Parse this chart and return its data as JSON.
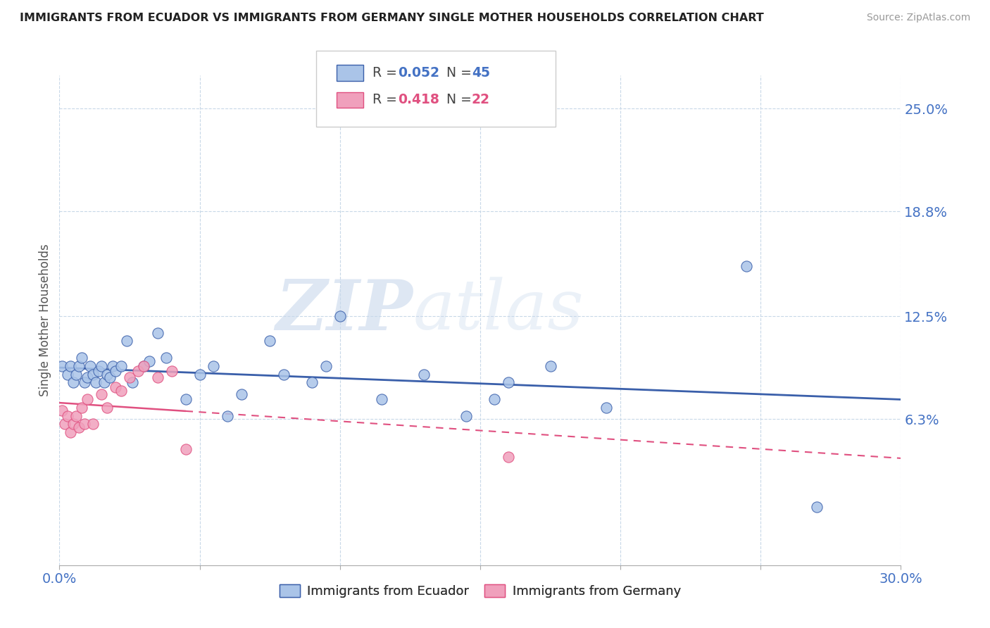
{
  "title": "IMMIGRANTS FROM ECUADOR VS IMMIGRANTS FROM GERMANY SINGLE MOTHER HOUSEHOLDS CORRELATION CHART",
  "source": "Source: ZipAtlas.com",
  "ylabel": "Single Mother Households",
  "xlim": [
    0.0,
    0.3
  ],
  "ylim": [
    -0.025,
    0.27
  ],
  "xticks": [
    0.0,
    0.05,
    0.1,
    0.15,
    0.2,
    0.25,
    0.3
  ],
  "ytick_positions": [
    0.063,
    0.125,
    0.188,
    0.25
  ],
  "ytick_labels": [
    "6.3%",
    "12.5%",
    "18.8%",
    "25.0%"
  ],
  "color_ecuador": "#aac4e8",
  "color_germany": "#f0a0bc",
  "color_ecuador_line": "#3a5faa",
  "color_germany_line": "#e05080",
  "watermark_zip": "ZIP",
  "watermark_atlas": "atlas",
  "ecuador_x": [
    0.001,
    0.003,
    0.004,
    0.005,
    0.006,
    0.007,
    0.008,
    0.009,
    0.01,
    0.011,
    0.012,
    0.013,
    0.014,
    0.015,
    0.016,
    0.017,
    0.018,
    0.019,
    0.02,
    0.022,
    0.024,
    0.026,
    0.03,
    0.032,
    0.035,
    0.038,
    0.045,
    0.05,
    0.055,
    0.06,
    0.065,
    0.075,
    0.08,
    0.09,
    0.095,
    0.1,
    0.115,
    0.13,
    0.145,
    0.155,
    0.16,
    0.175,
    0.195,
    0.245,
    0.27
  ],
  "ecuador_y": [
    0.095,
    0.09,
    0.095,
    0.085,
    0.09,
    0.095,
    0.1,
    0.085,
    0.088,
    0.095,
    0.09,
    0.085,
    0.092,
    0.095,
    0.085,
    0.09,
    0.088,
    0.095,
    0.092,
    0.095,
    0.11,
    0.085,
    0.095,
    0.098,
    0.115,
    0.1,
    0.075,
    0.09,
    0.095,
    0.065,
    0.078,
    0.11,
    0.09,
    0.085,
    0.095,
    0.125,
    0.075,
    0.09,
    0.065,
    0.075,
    0.085,
    0.095,
    0.07,
    0.155,
    0.01
  ],
  "germany_x": [
    0.001,
    0.002,
    0.003,
    0.004,
    0.005,
    0.006,
    0.007,
    0.008,
    0.009,
    0.01,
    0.012,
    0.015,
    0.017,
    0.02,
    0.022,
    0.025,
    0.028,
    0.03,
    0.035,
    0.04,
    0.045,
    0.16
  ],
  "germany_y": [
    0.068,
    0.06,
    0.065,
    0.055,
    0.06,
    0.065,
    0.058,
    0.07,
    0.06,
    0.075,
    0.06,
    0.078,
    0.07,
    0.082,
    0.08,
    0.088,
    0.092,
    0.095,
    0.088,
    0.092,
    0.045,
    0.04
  ]
}
